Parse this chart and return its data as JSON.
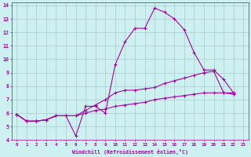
{
  "xlabel": "Windchill (Refroidissement éolien,°C)",
  "bg_color": "#cdf0f0",
  "line_color": "#aa00aa",
  "grid_color": "#aacccc",
  "xlim": [
    -0.5,
    23.5
  ],
  "ylim": [
    4,
    14.2
  ],
  "xticks": [
    0,
    1,
    2,
    3,
    4,
    5,
    6,
    7,
    8,
    9,
    10,
    11,
    12,
    13,
    14,
    15,
    16,
    17,
    18,
    19,
    20,
    21,
    22,
    23
  ],
  "yticks": [
    4,
    5,
    6,
    7,
    8,
    9,
    10,
    11,
    12,
    13,
    14
  ],
  "series": [
    [
      5.9,
      5.4,
      5.4,
      5.5,
      5.8,
      5.8,
      4.3,
      6.5,
      6.5,
      6.0,
      9.6,
      11.3,
      12.3,
      12.3,
      13.8,
      13.5,
      13.0,
      12.2,
      10.5,
      9.2,
      9.2,
      8.5,
      7.5
    ],
    [
      5.9,
      5.4,
      5.4,
      5.5,
      5.8,
      5.8,
      5.8,
      6.2,
      6.6,
      7.0,
      7.5,
      7.7,
      7.7,
      7.8,
      7.9,
      8.2,
      8.4,
      8.6,
      8.8,
      9.0,
      9.1,
      7.5,
      7.4
    ],
    [
      5.9,
      5.4,
      5.4,
      5.5,
      5.8,
      5.8,
      5.8,
      6.0,
      6.2,
      6.3,
      6.5,
      6.6,
      6.7,
      6.8,
      7.0,
      7.1,
      7.2,
      7.3,
      7.4,
      7.5,
      7.5,
      7.5,
      7.5
    ]
  ]
}
